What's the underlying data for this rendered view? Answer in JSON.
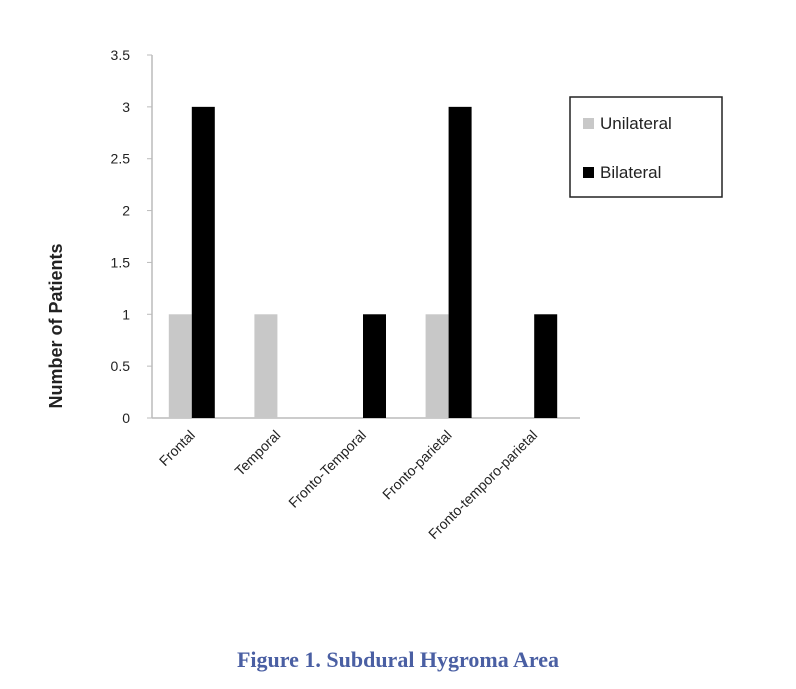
{
  "chart_data": {
    "type": "bar",
    "categories": [
      "Frontal",
      "Temporal",
      "Fronto-Temporal",
      "Fronto-parietal",
      "Fronto-temporo-parietal"
    ],
    "series": [
      {
        "name": "Unilateral",
        "color": "#c8c8c8",
        "values": [
          1,
          1,
          0,
          1,
          0
        ]
      },
      {
        "name": "Bilateral",
        "color": "#000000",
        "values": [
          3,
          0,
          1,
          3,
          1
        ]
      }
    ],
    "y_label": "Number of Patients",
    "ylim": [
      0,
      3.5
    ],
    "yticks": [
      0,
      0.5,
      1,
      1.5,
      2,
      2.5,
      3,
      3.5
    ],
    "legend": "right",
    "caption": "Figure 1. Subdural Hygroma Area"
  }
}
